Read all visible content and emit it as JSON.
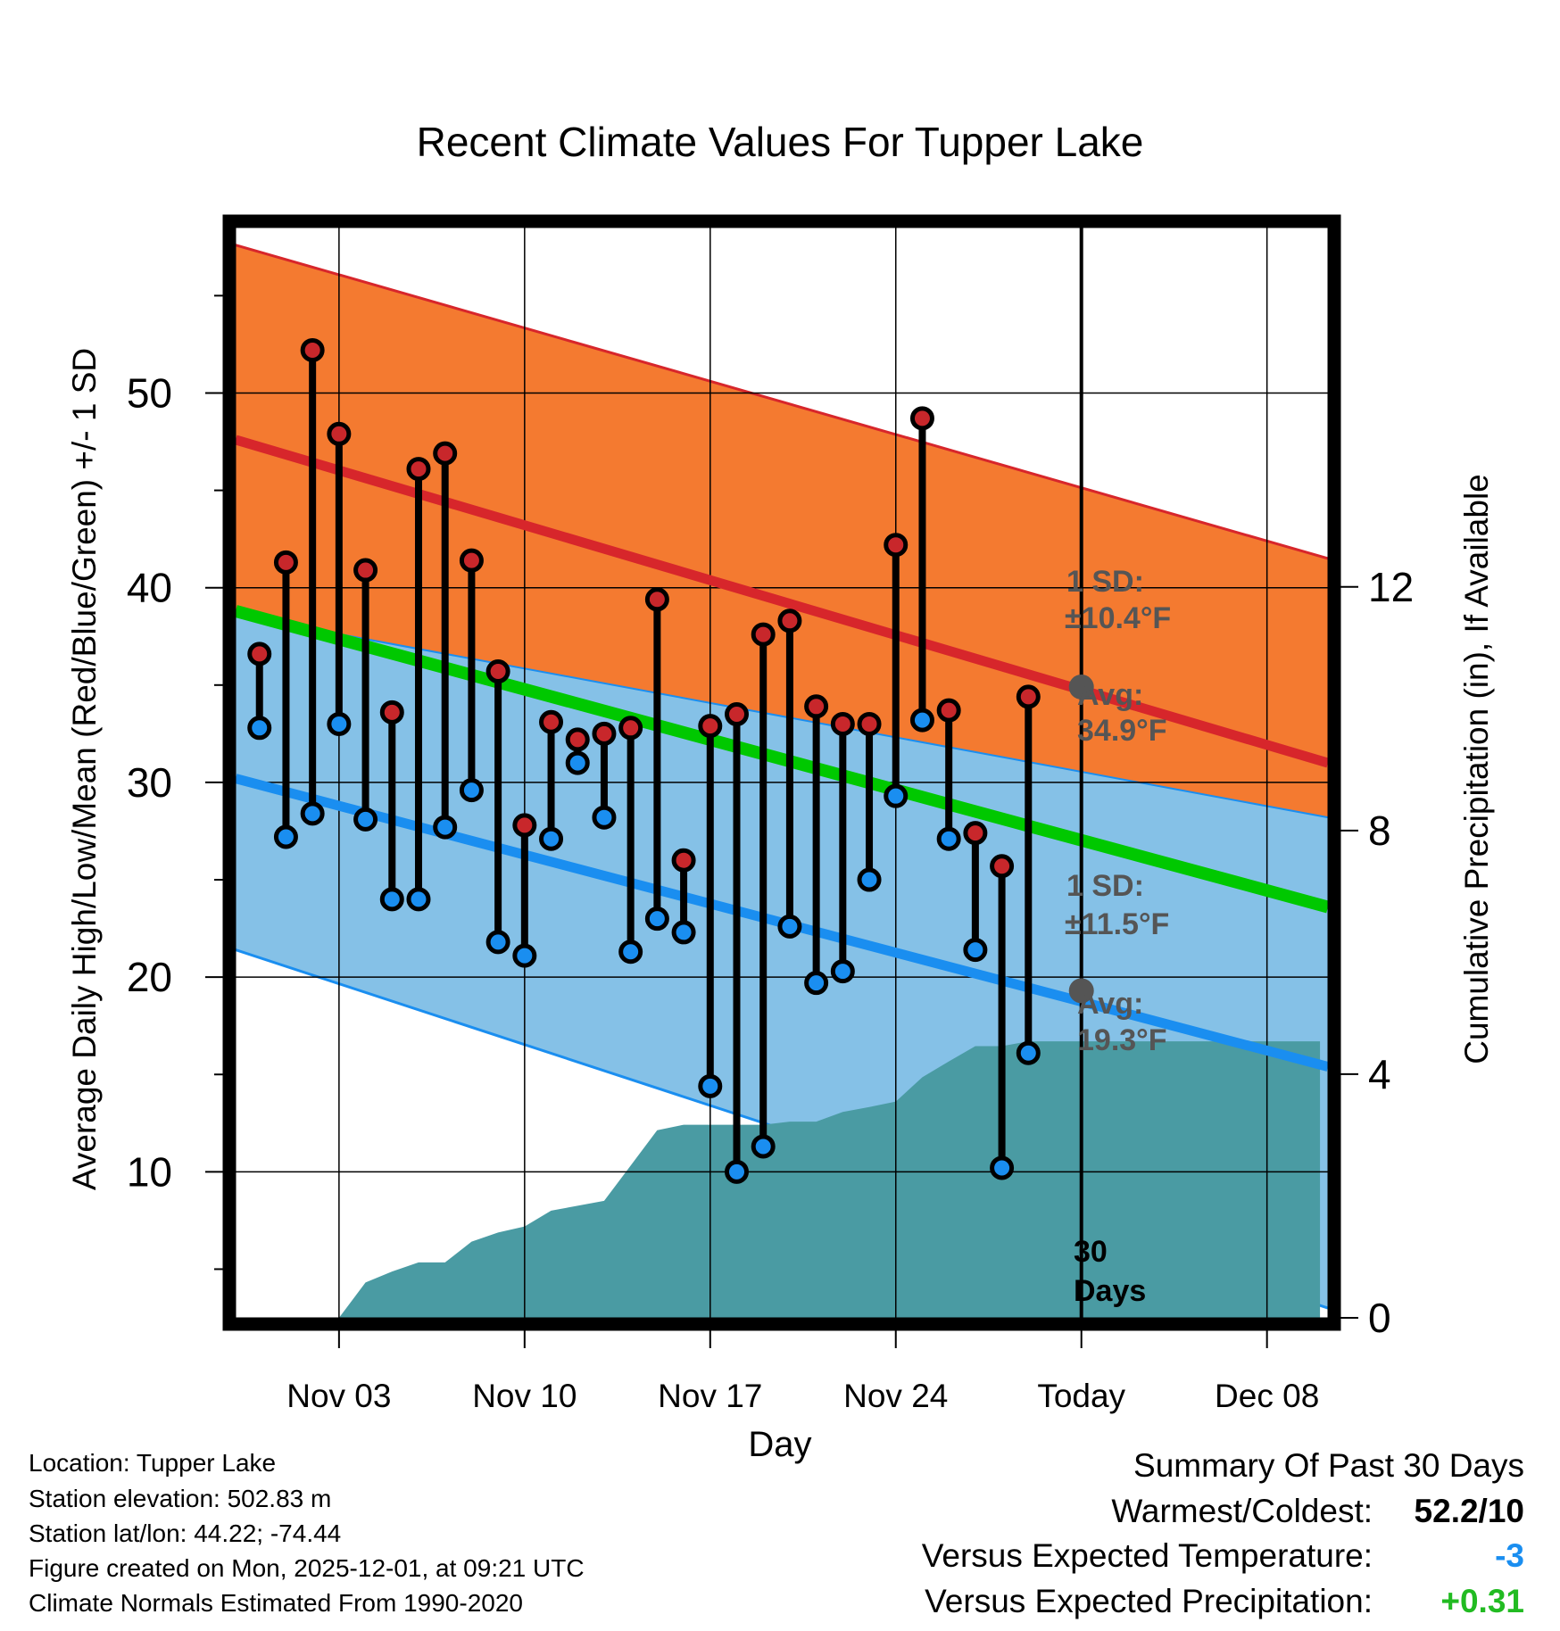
{
  "chart_data": {
    "type": "climate-range",
    "title": "Recent Climate Values For Tupper Lake",
    "xlabel": "Day",
    "ylabel_left": "Average Daily High/Low/Mean (Red/Blue/Green) +/- 1 SD",
    "ylabel_right": "Cumulative Precipitation (in), If Available",
    "x_range_days": [
      -30.9,
      10.3
    ],
    "ylim_left": [
      2.5,
      58.5
    ],
    "ylim_right": [
      0,
      17.9
    ],
    "x_ticks": [
      {
        "day": -27,
        "label": "Nov 03"
      },
      {
        "day": -20,
        "label": "Nov 10"
      },
      {
        "day": -13,
        "label": "Nov 17"
      },
      {
        "day": -6,
        "label": "Nov 24"
      },
      {
        "day": 1,
        "label": "Today"
      },
      {
        "day": 8,
        "label": "Dec 08"
      }
    ],
    "y_ticks_left": [
      10,
      20,
      30,
      40,
      50
    ],
    "y_ticks_right": [
      0,
      4,
      8,
      12
    ],
    "normals": {
      "high_avg": {
        "start": 47.6,
        "end": 31.0
      },
      "high_sd_upper": {
        "start": 57.6,
        "end": 41.5
      },
      "high_sd_lower": {
        "start": 38.0,
        "end": 20.6
      },
      "mean_avg": {
        "start": 38.8,
        "end": 23.6
      },
      "low_avg": {
        "start": 30.2,
        "end": 15.4
      },
      "low_sd_upper": {
        "start": 38.6,
        "end": 28.2
      },
      "low_sd_lower": {
        "start": 21.4,
        "end": 3.0
      }
    },
    "colors": {
      "high_band": "#f47a30",
      "high_line": "#d7262b",
      "overlap_band": "#930f12",
      "low_band": "#85c1e7",
      "low_line": "#1a8ef0",
      "mean_line": "#00c800",
      "precip": "#4a9ba3",
      "high_dot": "#c8272b",
      "low_dot": "#1a8ef0",
      "marker": "#555555"
    },
    "observations": [
      {
        "day": -30,
        "high": 36.6,
        "low": 32.8
      },
      {
        "day": -29,
        "high": 41.3,
        "low": 27.2
      },
      {
        "day": -28,
        "high": 52.2,
        "low": 28.4
      },
      {
        "day": -27,
        "high": 47.9,
        "low": 33.0
      },
      {
        "day": -26,
        "high": 40.9,
        "low": 28.1
      },
      {
        "day": -25,
        "high": 33.6,
        "low": 24.0
      },
      {
        "day": -24,
        "high": 46.1,
        "low": 24.0
      },
      {
        "day": -23,
        "high": 46.9,
        "low": 27.7
      },
      {
        "day": -22,
        "high": 41.4,
        "low": 29.6
      },
      {
        "day": -21,
        "high": 35.7,
        "low": 21.8
      },
      {
        "day": -20,
        "high": 27.8,
        "low": 21.1
      },
      {
        "day": -19,
        "high": 33.1,
        "low": 27.1
      },
      {
        "day": -18,
        "high": 32.2,
        "low": 31.0
      },
      {
        "day": -17,
        "high": 32.5,
        "low": 28.2
      },
      {
        "day": -16,
        "high": 32.8,
        "low": 21.3
      },
      {
        "day": -15,
        "high": 39.4,
        "low": 23.0
      },
      {
        "day": -14,
        "high": 26.0,
        "low": 22.3
      },
      {
        "day": -13,
        "high": 32.9,
        "low": 14.4
      },
      {
        "day": -12,
        "high": 33.5,
        "low": 10.0
      },
      {
        "day": -11,
        "high": 37.6,
        "low": 11.3
      },
      {
        "day": -10,
        "high": 38.3,
        "low": 22.6
      },
      {
        "day": -9,
        "high": 33.9,
        "low": 19.7
      },
      {
        "day": -8,
        "high": 33.0,
        "low": 20.3
      },
      {
        "day": -7,
        "high": 33.0,
        "low": 25.0
      },
      {
        "day": -6,
        "high": 42.2,
        "low": 29.3
      },
      {
        "day": -5,
        "high": 48.7,
        "low": 33.2
      },
      {
        "day": -4,
        "high": 33.7,
        "low": 27.1
      },
      {
        "day": -3,
        "high": 27.4,
        "low": 21.4
      },
      {
        "day": -2,
        "high": 25.7,
        "low": 10.2
      },
      {
        "day": -1,
        "high": 34.4,
        "low": 16.1
      }
    ],
    "precip_cumulative": [
      {
        "day": -30,
        "value": 0.0
      },
      {
        "day": -27,
        "value": 0.0
      },
      {
        "day": -26,
        "value": 0.58
      },
      {
        "day": -25,
        "value": 0.76
      },
      {
        "day": -24,
        "value": 0.91
      },
      {
        "day": -23,
        "value": 0.91
      },
      {
        "day": -22,
        "value": 1.25
      },
      {
        "day": -21,
        "value": 1.4
      },
      {
        "day": -20,
        "value": 1.5
      },
      {
        "day": -19,
        "value": 1.76
      },
      {
        "day": -18,
        "value": 1.84
      },
      {
        "day": -17,
        "value": 1.92
      },
      {
        "day": -16,
        "value": 2.5
      },
      {
        "day": -15,
        "value": 3.08
      },
      {
        "day": -14,
        "value": 3.17
      },
      {
        "day": -13,
        "value": 3.17
      },
      {
        "day": -12,
        "value": 3.17
      },
      {
        "day": -11,
        "value": 3.17
      },
      {
        "day": -10,
        "value": 3.22
      },
      {
        "day": -9,
        "value": 3.22
      },
      {
        "day": -8,
        "value": 3.38
      },
      {
        "day": -7,
        "value": 3.46
      },
      {
        "day": -6,
        "value": 3.55
      },
      {
        "day": -5,
        "value": 3.95
      },
      {
        "day": -4,
        "value": 4.21
      },
      {
        "day": -3,
        "value": 4.46
      },
      {
        "day": -2,
        "value": 4.46
      },
      {
        "day": -1,
        "value": 4.54
      },
      {
        "day": 1,
        "value": 4.54
      },
      {
        "day": 10,
        "value": 4.54
      }
    ],
    "markers": [
      {
        "day": 1,
        "value": 34.9
      },
      {
        "day": 1,
        "value": 19.3
      }
    ],
    "today_day": 1,
    "annotations": {
      "high_sd_title": "1 SD:",
      "high_sd_value": "±10.4°F",
      "high_avg_title": "Avg:",
      "high_avg_value": "34.9°F",
      "low_sd_title": "1 SD:",
      "low_sd_value": "±11.5°F",
      "low_avg_title": "Avg:",
      "low_avg_value": "19.3°F",
      "days_number": "30",
      "days_label": "Days"
    }
  },
  "info": {
    "location": "Location: Tupper Lake",
    "elevation": "Station elevation: 502.83 m",
    "latlon": "Station lat/lon: 44.22; -74.44",
    "created": "Figure created on Mon, 2025-12-01, at 09:21 UTC",
    "normals": "Climate Normals Estimated From 1990-2020"
  },
  "summary": {
    "title": "Summary Of Past 30 Days",
    "warmest_label": "Warmest/Coldest:",
    "warmest_value": "52.2/10",
    "temp_label": "Versus Expected Temperature:",
    "temp_value": "-3",
    "temp_color": "#1a8ef0",
    "precip_label": "Versus Expected Precipitation:",
    "precip_value": "+0.31",
    "precip_color": "#22bb22"
  }
}
